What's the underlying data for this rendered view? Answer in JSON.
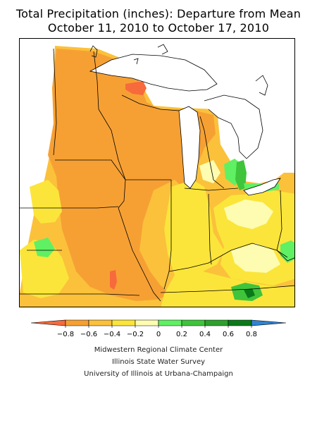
{
  "title": {
    "line1": "Total Precipitation (inches): Departure from Mean",
    "line2": "October 11, 2010 to October 17, 2010"
  },
  "legend": {
    "tick_labels": [
      "−0.8",
      "−0.6",
      "−0.4",
      "−0.2",
      "0",
      "0.2",
      "0.4",
      "0.6",
      "0.8"
    ],
    "colors": [
      "#f76a3b",
      "#f6a034",
      "#fbc13b",
      "#fbe53a",
      "#fdfcb0",
      "#5ff063",
      "#3fc43b",
      "#2ea12b",
      "#0a7a18",
      "#2f84d4"
    ]
  },
  "colors": {
    "orange_dark": "#f6a034",
    "orange": "#fbc13b",
    "yellow": "#fbe53a",
    "pale_yellow": "#fdfcb0",
    "red_orange": "#f76a3b",
    "light_green": "#5ff063",
    "green": "#3fc43b",
    "dark_green": "#0a7a18"
  },
  "credits": [
    "Midwestern Regional Climate Center",
    "Illinois State Water Survey",
    "University of Illinois at Urbana-Champaign"
  ]
}
